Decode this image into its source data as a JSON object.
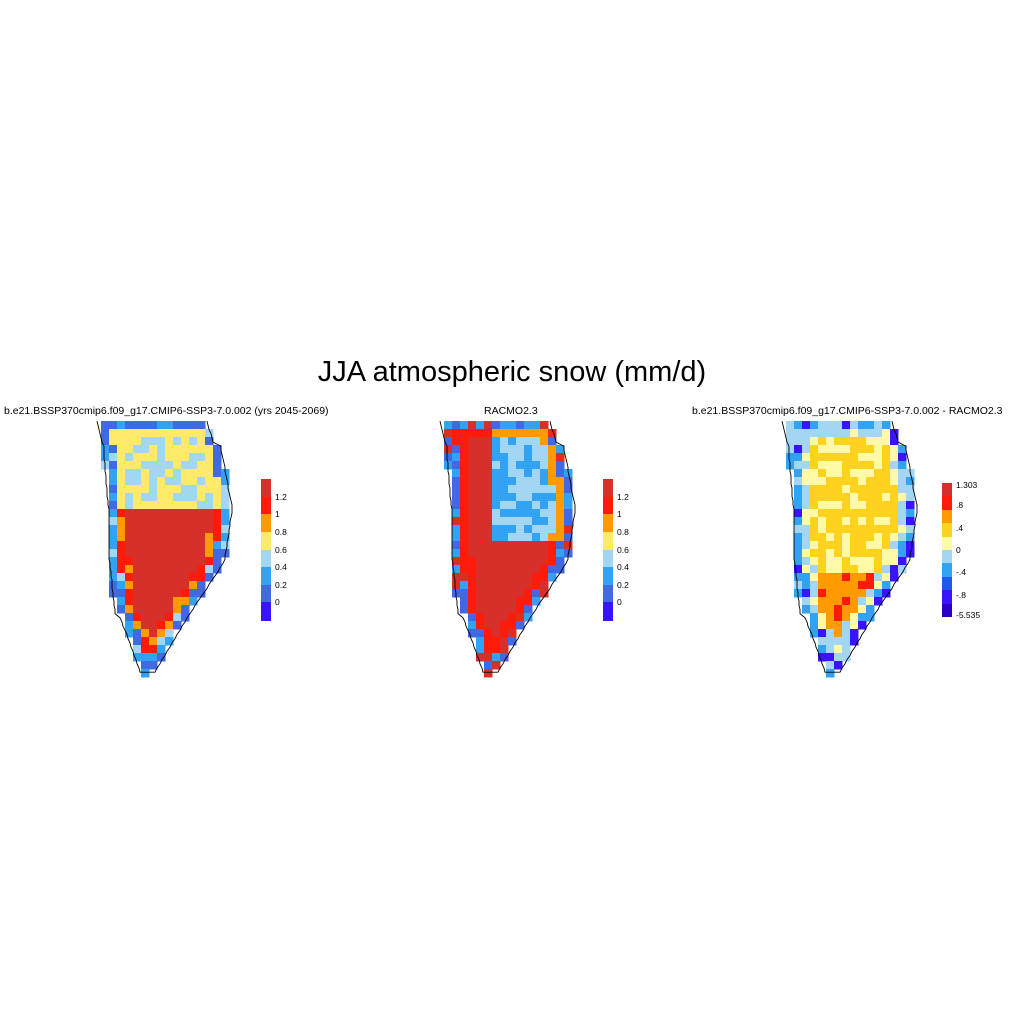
{
  "figure": {
    "title": "JJA atmospheric snow (mm/d)",
    "panels": [
      {
        "id": "model",
        "title": "b.e21.BSSP370cmip6.f09_g17.CMIP6-SSP3-7.0.002 (yrs 2045-2069)",
        "colorbar": {
          "labels": [
            "1.2",
            "1",
            "0.8",
            "0.6",
            "0.4",
            "0.2",
            "0"
          ],
          "colors": [
            "#d7302a",
            "#ff1b0a",
            "#ff9a00",
            "#ffeb6a",
            "#a3d6f2",
            "#32a2f2",
            "#4169e1",
            "#3a14ff"
          ]
        }
      },
      {
        "id": "racmo",
        "title": "RACMO2.3",
        "colorbar": {
          "labels": [
            "1.2",
            "1",
            "0.8",
            "0.6",
            "0.4",
            "0.2",
            "0"
          ],
          "colors": [
            "#d7302a",
            "#ff1b0a",
            "#ff9a00",
            "#ffeb6a",
            "#a3d6f2",
            "#32a2f2",
            "#4169e1",
            "#3a14ff"
          ]
        }
      },
      {
        "id": "diff",
        "title": "b.e21.BSSP370cmip6.f09_g17.CMIP6-SSP3-7.0.002 - RACMO2.3",
        "colorbar": {
          "labels": [
            "1.303",
            ".8",
            ".4",
            "0",
            "-.4",
            "-.8",
            "-5.535"
          ],
          "colors": [
            "#d7302a",
            "#ff1b0a",
            "#ff9a00",
            "#ffd21d",
            "#fffaa8",
            "#a3d6f2",
            "#32a2f2",
            "#1e5be8",
            "#3a14ff",
            "#2a00c8"
          ]
        }
      }
    ]
  }
}
